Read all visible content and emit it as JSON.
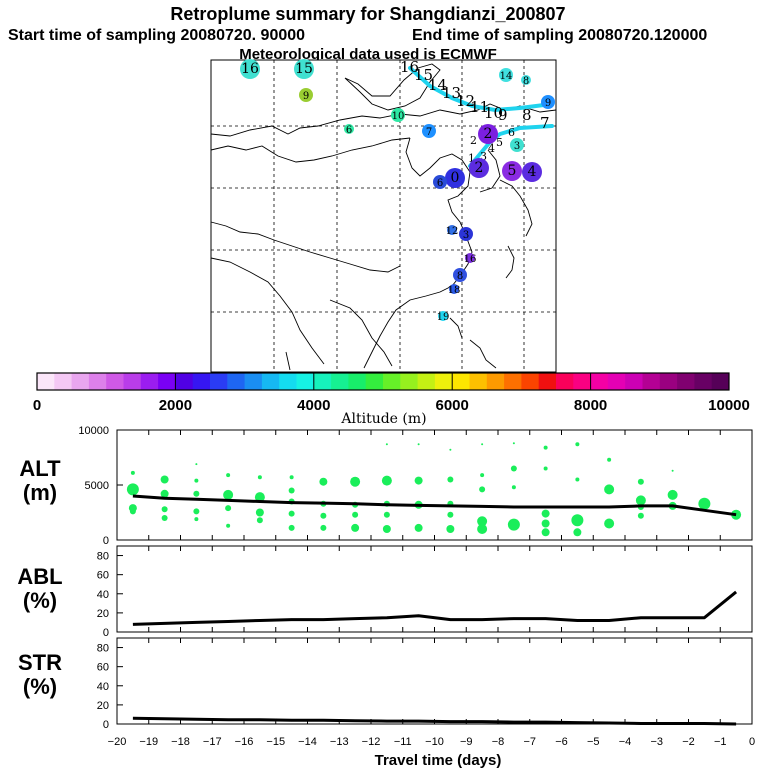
{
  "header": {
    "title": "Retroplume summary for Shangdianzi_200807",
    "start_label": "Start time of sampling 20080720. 90000",
    "end_label": "End time of sampling 20080720.120000",
    "met_label": "Meteorological data used is ECMWF"
  },
  "map": {
    "colors": {
      "plume_line": "#1fd3ee",
      "background": "#ffffff",
      "coast": "#000000"
    },
    "markers": [
      {
        "label": "16",
        "color": "#40e0d0",
        "size": "L"
      },
      {
        "label": "15",
        "color": "#40e0d0",
        "size": "L"
      },
      {
        "label": "9",
        "color": "#9acd32",
        "size": "M"
      },
      {
        "label": "10",
        "color": "#2ee8a4",
        "size": "M"
      },
      {
        "label": "6",
        "color": "#2ee8a4",
        "size": "S"
      },
      {
        "label": "14",
        "color": "#40e0e0",
        "size": "M"
      },
      {
        "label": "8",
        "color": "#40e0e0",
        "size": "S"
      },
      {
        "label": "9",
        "color": "#1e8fff",
        "size": "M"
      },
      {
        "label": "7",
        "color": "#1e90ff",
        "size": "M"
      },
      {
        "label": "2",
        "color": "#7b1fe0",
        "size": "L"
      },
      {
        "label": "3",
        "color": "#40e0d0",
        "size": "M"
      },
      {
        "label": "5",
        "color": "#8a2be2",
        "size": "L"
      },
      {
        "label": "2",
        "color": "#5c2ce0",
        "size": "L"
      },
      {
        "label": "0",
        "color": "#3030e0",
        "size": "L"
      },
      {
        "label": "6",
        "color": "#2a4bd8",
        "size": "M"
      },
      {
        "label": "4",
        "color": "#5b2be0",
        "size": "L"
      },
      {
        "label": "12",
        "color": "#3070e8",
        "size": "S"
      },
      {
        "label": "3",
        "color": "#2b34d8",
        "size": "M"
      },
      {
        "label": "16",
        "color": "#7b2fe0",
        "size": "S"
      },
      {
        "label": "8",
        "color": "#3050e0",
        "size": "M"
      },
      {
        "label": "18",
        "color": "#2a5ae8",
        "size": "S"
      },
      {
        "label": "19",
        "color": "#1fd3ee",
        "size": "S"
      }
    ],
    "trajectory_labels": [
      "16",
      "15",
      "14",
      "13",
      "12",
      "11",
      "10",
      "9",
      "8",
      "7",
      "6",
      "5",
      "4",
      "3",
      "2",
      "1",
      "0"
    ]
  },
  "colorbar": {
    "xlabel": "Altitude (m)",
    "tick_labels": [
      "0",
      "2000",
      "4000",
      "6000",
      "8000",
      "10000"
    ],
    "colors": [
      "#fbe6f9",
      "#f4c8f4",
      "#e9a6ef",
      "#dd80ea",
      "#cf59e6",
      "#b93de9",
      "#9b1df0",
      "#7a00f4",
      "#5000e4",
      "#3616f2",
      "#2a3cf4",
      "#1e66f2",
      "#1a8ef2",
      "#16b8f2",
      "#14dcf0",
      "#16f2e4",
      "#16f2bc",
      "#16f092",
      "#18ee6a",
      "#34ee3e",
      "#66f028",
      "#96f01e",
      "#c4f014",
      "#eef00c",
      "#fde600",
      "#fdc000",
      "#fd9a00",
      "#fd7000",
      "#fb4400",
      "#f01010",
      "#fa005a",
      "#fa0082",
      "#f400a4",
      "#e400b4",
      "#cc00b4",
      "#b40094",
      "#9a0080",
      "#800070",
      "#680064",
      "#560058"
    ]
  },
  "chart_data": [
    {
      "type": "line",
      "title": "ALT (m)",
      "ylabel": "ALT (m)",
      "xlabel": "Travel time (days)",
      "xlim": [
        -20,
        0
      ],
      "ylim": [
        0,
        10000
      ],
      "yticks": [
        0,
        5000,
        10000
      ],
      "series": [
        {
          "name": "median altitude",
          "x": [
            -19.5,
            -18.5,
            -17.5,
            -16.5,
            -15.5,
            -14.5,
            -13.5,
            -12.5,
            -11.5,
            -10.5,
            -9.5,
            -8.5,
            -7.5,
            -6.5,
            -5.5,
            -4.5,
            -3.5,
            -2.5,
            -1.5,
            -0.5
          ],
          "y": [
            4000,
            3800,
            3700,
            3600,
            3500,
            3400,
            3350,
            3300,
            3200,
            3150,
            3100,
            3050,
            3000,
            3000,
            3000,
            3000,
            3100,
            3100,
            2700,
            2300
          ]
        }
      ],
      "scatter": {
        "name": "altitude distribution",
        "color": "#1aee5a",
        "points": [
          [
            -19.5,
            6100,
            2
          ],
          [
            -19.5,
            4600,
            6
          ],
          [
            -19.5,
            2900,
            4
          ],
          [
            -19.5,
            2600,
            3
          ],
          [
            -18.5,
            5500,
            4
          ],
          [
            -18.5,
            4200,
            4
          ],
          [
            -18.5,
            2800,
            3
          ],
          [
            -18.5,
            2000,
            3
          ],
          [
            -17.5,
            6900,
            1
          ],
          [
            -17.5,
            5400,
            2
          ],
          [
            -17.5,
            4200,
            3
          ],
          [
            -17.5,
            2600,
            3
          ],
          [
            -17.5,
            1900,
            2
          ],
          [
            -16.5,
            5900,
            2
          ],
          [
            -16.5,
            4100,
            5
          ],
          [
            -16.5,
            2900,
            3
          ],
          [
            -16.5,
            1300,
            2
          ],
          [
            -15.5,
            5700,
            2
          ],
          [
            -15.5,
            3900,
            5
          ],
          [
            -15.5,
            2500,
            4
          ],
          [
            -15.5,
            1800,
            3
          ],
          [
            -14.5,
            5700,
            2
          ],
          [
            -14.5,
            4500,
            3
          ],
          [
            -14.5,
            3500,
            3
          ],
          [
            -14.5,
            2400,
            3
          ],
          [
            -14.5,
            1100,
            3
          ],
          [
            -13.5,
            5300,
            4
          ],
          [
            -13.5,
            3300,
            3
          ],
          [
            -13.5,
            2200,
            3
          ],
          [
            -13.5,
            1100,
            3
          ],
          [
            -12.5,
            5300,
            5
          ],
          [
            -12.5,
            3200,
            3
          ],
          [
            -12.5,
            2300,
            3
          ],
          [
            -12.5,
            1100,
            4
          ],
          [
            -11.5,
            8700,
            1
          ],
          [
            -11.5,
            5400,
            5
          ],
          [
            -11.5,
            3300,
            3
          ],
          [
            -11.5,
            2300,
            3
          ],
          [
            -11.5,
            1000,
            4
          ],
          [
            -10.5,
            8700,
            1
          ],
          [
            -10.5,
            5400,
            4
          ],
          [
            -10.5,
            3200,
            4
          ],
          [
            -10.5,
            1100,
            4
          ],
          [
            -9.5,
            8200,
            1
          ],
          [
            -9.5,
            5500,
            3
          ],
          [
            -9.5,
            3300,
            3
          ],
          [
            -9.5,
            2300,
            3
          ],
          [
            -9.5,
            1000,
            4
          ],
          [
            -8.5,
            8700,
            1
          ],
          [
            -8.5,
            5900,
            2
          ],
          [
            -8.5,
            4600,
            3
          ],
          [
            -8.5,
            1700,
            5
          ],
          [
            -8.5,
            1000,
            5
          ],
          [
            -7.5,
            8800,
            1
          ],
          [
            -7.5,
            6500,
            3
          ],
          [
            -7.5,
            4800,
            2
          ],
          [
            -7.5,
            1400,
            6
          ],
          [
            -6.5,
            8400,
            2
          ],
          [
            -6.5,
            6500,
            2
          ],
          [
            -6.5,
            2400,
            4
          ],
          [
            -6.5,
            1500,
            4
          ],
          [
            -6.5,
            700,
            4
          ],
          [
            -5.5,
            8700,
            2
          ],
          [
            -5.5,
            5500,
            2
          ],
          [
            -5.5,
            1800,
            6
          ],
          [
            -5.5,
            700,
            4
          ],
          [
            -4.5,
            7300,
            2
          ],
          [
            -4.5,
            4600,
            5
          ],
          [
            -4.5,
            1500,
            5
          ],
          [
            -3.5,
            5300,
            3
          ],
          [
            -3.5,
            3600,
            5
          ],
          [
            -3.5,
            3000,
            3
          ],
          [
            -3.5,
            2200,
            3
          ],
          [
            -2.5,
            6300,
            1
          ],
          [
            -2.5,
            4100,
            5
          ],
          [
            -2.5,
            3100,
            4
          ],
          [
            -1.5,
            3300,
            6
          ],
          [
            -0.5,
            2300,
            5
          ]
        ]
      }
    },
    {
      "type": "line",
      "title": "ABL (%)",
      "ylabel": "ABL (%)",
      "xlabel": "Travel time (days)",
      "xlim": [
        -20,
        0
      ],
      "ylim": [
        0,
        90
      ],
      "yticks": [
        0,
        20,
        40,
        60,
        80
      ],
      "series": [
        {
          "name": "ABL fraction",
          "x": [
            -19.5,
            -18.5,
            -17.5,
            -16.5,
            -15.5,
            -14.5,
            -13.5,
            -12.5,
            -11.5,
            -10.5,
            -9.5,
            -8.5,
            -7.5,
            -6.5,
            -5.5,
            -4.5,
            -3.5,
            -2.5,
            -1.5,
            -0.5
          ],
          "y": [
            8,
            9,
            10,
            11,
            12,
            13,
            13,
            14,
            15,
            17,
            13,
            13,
            14,
            14,
            12,
            12,
            15,
            15,
            15,
            42
          ]
        }
      ]
    },
    {
      "type": "line",
      "title": "STR (%)",
      "ylabel": "STR (%)",
      "xlabel": "Travel time (days)",
      "xlim": [
        -20,
        0
      ],
      "ylim": [
        0,
        90
      ],
      "yticks": [
        0,
        20,
        40,
        60,
        80
      ],
      "xticks": [
        -20,
        -19,
        -18,
        -17,
        -16,
        -15,
        -14,
        -13,
        -12,
        -11,
        -10,
        -9,
        -8,
        -7,
        -6,
        -5,
        -4,
        -3,
        -2,
        -1,
        0
      ],
      "series": [
        {
          "name": "STR fraction",
          "x": [
            -19.5,
            -18.5,
            -17.5,
            -16.5,
            -15.5,
            -14.5,
            -13.5,
            -12.5,
            -11.5,
            -10.5,
            -9.5,
            -8.5,
            -7.5,
            -6.5,
            -5.5,
            -4.5,
            -3.5,
            -2.5,
            -1.5,
            -0.5
          ],
          "y": [
            6,
            5.5,
            5,
            4.5,
            4.5,
            4,
            4,
            3.5,
            3,
            3,
            2.5,
            2.5,
            2,
            2,
            1.5,
            1,
            0.5,
            0.5,
            0.5,
            0
          ]
        }
      ]
    }
  ],
  "panel_labels": {
    "alt_line1": "ALT",
    "alt_line2": "(m)",
    "abl_line1": "ABL",
    "abl_line2": "(%)",
    "str_line1": "STR",
    "str_line2": "(%)"
  },
  "xaxis_label": "Travel time (days)"
}
